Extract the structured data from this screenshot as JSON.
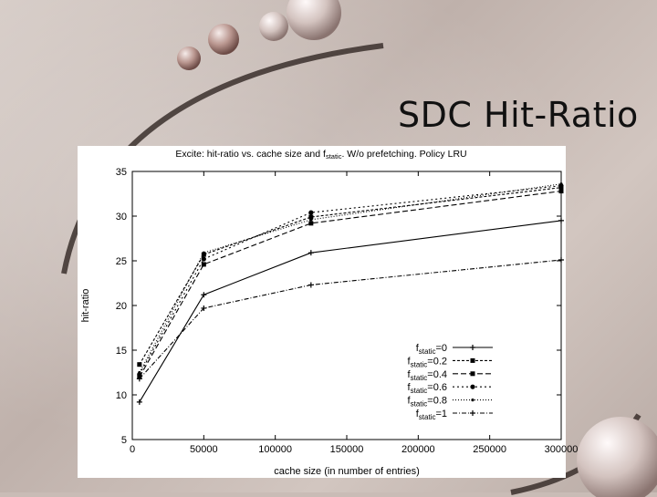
{
  "slide": {
    "title": "SDC Hit-Ratio"
  },
  "chart_data": {
    "type": "line",
    "title": "Excite: hit-ratio vs. cache size and f_static. W/o prefetching. Policy LRU",
    "title_parts": {
      "before": "Excite: hit-ratio vs. cache size and f",
      "subscript": "static",
      "after": ". W/o prefetching. Policy LRU"
    },
    "xlabel": "cache size (in number of entries)",
    "ylabel": "hit-ratio",
    "xlim": [
      0,
      300000
    ],
    "ylim": [
      5,
      35
    ],
    "x_ticks": [
      0,
      50000,
      100000,
      150000,
      200000,
      250000,
      300000
    ],
    "y_ticks": [
      5,
      10,
      15,
      20,
      25,
      30,
      35
    ],
    "grid": false,
    "legend_position": "bottom-right",
    "legend_prefix": "f",
    "legend_subscript": "static",
    "x": [
      5000,
      50000,
      125000,
      300000
    ],
    "series": [
      {
        "name": "=0",
        "values": [
          9.2,
          21.2,
          25.9,
          29.5
        ],
        "color": "#000000",
        "dash": "",
        "marker": "plus"
      },
      {
        "name": "=0.2",
        "values": [
          13.4,
          25.7,
          29.9,
          33.2
        ],
        "color": "#000000",
        "dash": "3,2",
        "marker": "square"
      },
      {
        "name": "=0.4",
        "values": [
          12.0,
          24.6,
          29.2,
          32.8
        ],
        "color": "#000000",
        "dash": "6,3",
        "marker": "square"
      },
      {
        "name": "=0.6",
        "values": [
          12.3,
          25.2,
          30.4,
          33.4
        ],
        "color": "#000000",
        "dash": "2,3",
        "marker": "circle"
      },
      {
        "name": "=0.8",
        "values": [
          12.5,
          25.9,
          29.6,
          33.6
        ],
        "color": "#000000",
        "dash": "1,2",
        "marker": "dot"
      },
      {
        "name": "=1",
        "values": [
          11.8,
          19.7,
          22.3,
          25.1
        ],
        "color": "#000000",
        "dash": "5,2,1,2",
        "marker": "plus"
      }
    ]
  }
}
